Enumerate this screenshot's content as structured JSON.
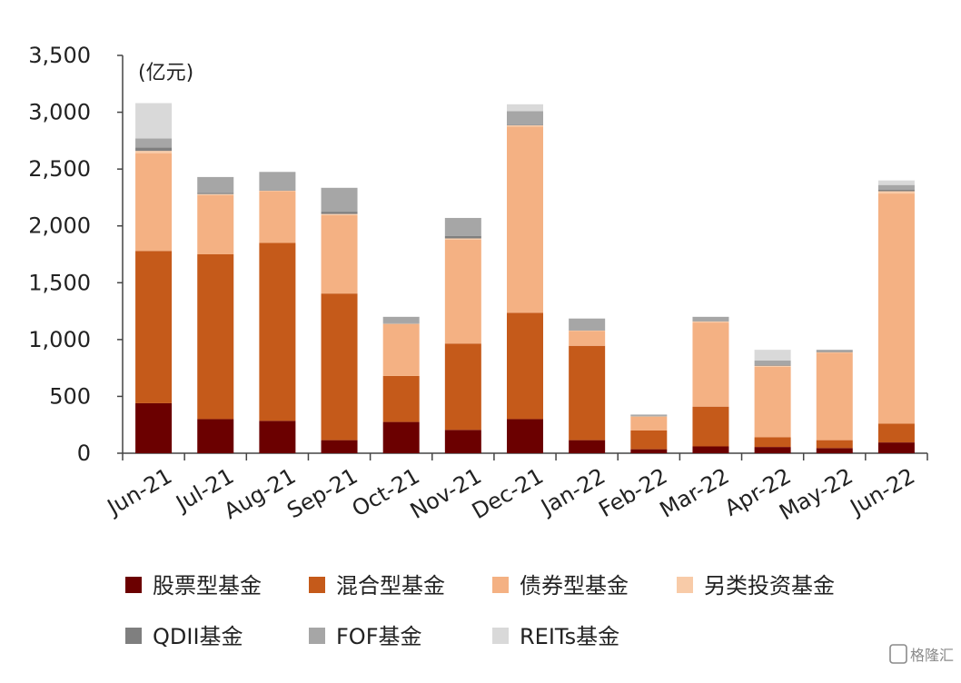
{
  "chart_data": {
    "type": "bar",
    "stacked": true,
    "title": "",
    "xlabel": "",
    "ylabel": "(亿元)",
    "ylim": [
      0,
      3500
    ],
    "yticks": [
      "0",
      "500",
      "1,000",
      "1,500",
      "2,000",
      "2,500",
      "3,000",
      "3,500"
    ],
    "ytick_values": [
      0,
      500,
      1000,
      1500,
      2000,
      2500,
      3000,
      3500
    ],
    "grid": false,
    "legend_position": "bottom",
    "categories": [
      "Jun-21",
      "Jul-21",
      "Aug-21",
      "Sep-21",
      "Oct-21",
      "Nov-21",
      "Dec-21",
      "Jan-22",
      "Feb-22",
      "Mar-22",
      "Apr-22",
      "May-22",
      "Jun-22"
    ],
    "series": [
      {
        "name": "股票型基金",
        "color": "#6b0000",
        "values": [
          440,
          300,
          285,
          115,
          275,
          205,
          300,
          115,
          35,
          60,
          55,
          45,
          95
        ]
      },
      {
        "name": "混合型基金",
        "color": "#c55a1a",
        "values": [
          1340,
          1450,
          1565,
          1290,
          405,
          760,
          935,
          830,
          165,
          350,
          85,
          70,
          165
        ]
      },
      {
        "name": "债券型基金",
        "color": "#f4b183",
        "values": [
          860,
          520,
          455,
          690,
          455,
          915,
          1640,
          130,
          120,
          740,
          620,
          770,
          2025
        ]
      },
      {
        "name": "另类投资基金",
        "color": "#f8cba8",
        "values": [
          20,
          10,
          5,
          10,
          5,
          10,
          10,
          5,
          5,
          10,
          10,
          5,
          20
        ]
      },
      {
        "name": "QDII基金",
        "color": "#7f7f7f",
        "values": [
          30,
          10,
          5,
          20,
          5,
          20,
          5,
          5,
          5,
          5,
          5,
          5,
          15
        ]
      },
      {
        "name": "FOF基金",
        "color": "#a6a6a6",
        "values": [
          80,
          140,
          160,
          210,
          55,
          160,
          120,
          100,
          10,
          35,
          40,
          15,
          40
        ]
      },
      {
        "name": "REITs基金",
        "color": "#d9d9d9",
        "values": [
          310,
          0,
          0,
          0,
          0,
          0,
          60,
          0,
          0,
          0,
          95,
          0,
          40
        ]
      }
    ]
  },
  "watermark": {
    "text": "格隆汇",
    "icon": "glh-logo-icon"
  }
}
